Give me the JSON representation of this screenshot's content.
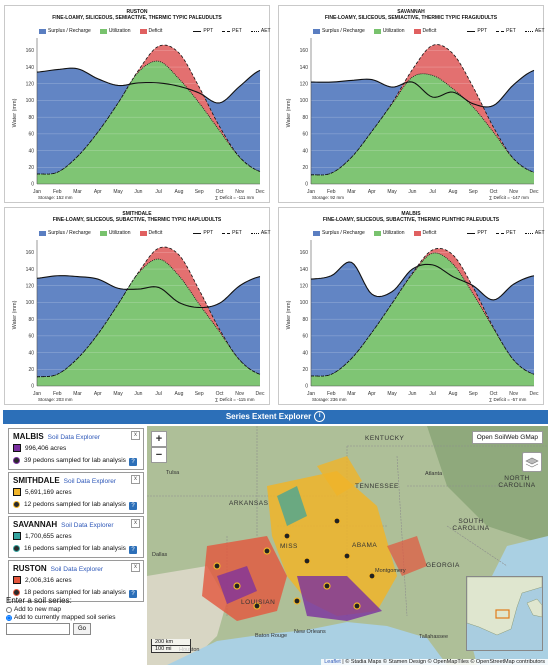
{
  "panels": [
    {
      "id": "ruston",
      "name": "RUSTON",
      "classification": "FINE-LOAMY, SILICEOUS, SEMIACTIVE, THERMIC TYPIC PALEUDULTS",
      "storage": "Storage: 152 mm",
      "deficit": "∑ Deficit = -111 mm",
      "chart_data": {
        "type": "area",
        "x": [
          "Jan",
          "Feb",
          "Mar",
          "Apr",
          "May",
          "Jun",
          "Jul",
          "Aug",
          "Sep",
          "Oct",
          "Nov",
          "Dec"
        ],
        "ylabel": "Water (mm)",
        "ylim": [
          0,
          170
        ],
        "yticks": [
          0,
          20,
          40,
          60,
          80,
          100,
          120,
          140,
          160
        ],
        "series": [
          {
            "name": "PPT",
            "values": [
              134,
              137,
              138,
              126,
              118,
              121,
              121,
              117,
              109,
              97,
              117,
              136
            ]
          },
          {
            "name": "PET",
            "values": [
              12,
              14,
              33,
              62,
              97,
              136,
              165,
              157,
              116,
              69,
              32,
              15
            ]
          },
          {
            "name": "AET",
            "values": [
              12,
              14,
              33,
              62,
              97,
              134,
              147,
              126,
              97,
              64,
              32,
              15
            ]
          }
        ],
        "legend": [
          "Surplus / Recharge",
          "Utilization",
          "Deficit",
          "PPT",
          "PET",
          "AET"
        ]
      }
    },
    {
      "id": "savannah",
      "name": "SAVANNAH",
      "classification": "FINE-LOAMY, SILICEOUS, SEMIACTIVE, THERMIC TYPIC FRAGIUDULTS",
      "storage": "Storage: 92 mm",
      "deficit": "∑ Deficit = -147 mm",
      "chart_data": {
        "type": "area",
        "x": [
          "Jan",
          "Feb",
          "Mar",
          "Apr",
          "May",
          "Jun",
          "Jul",
          "Aug",
          "Sep",
          "Oct",
          "Nov",
          "Dec"
        ],
        "ylabel": "Water (mm)",
        "ylim": [
          0,
          170
        ],
        "yticks": [
          0,
          20,
          40,
          60,
          80,
          100,
          120,
          140,
          160
        ],
        "series": [
          {
            "name": "PPT",
            "values": [
              122,
              122,
              124,
              125,
              116,
              122,
              104,
              110,
              96,
              94,
              119,
              136
            ]
          },
          {
            "name": "PET",
            "values": [
              11,
              13,
              32,
              63,
              97,
              137,
              166,
              156,
              116,
              68,
              30,
              14
            ]
          },
          {
            "name": "AET",
            "values": [
              11,
              13,
              32,
              63,
              96,
              128,
              130,
              114,
              92,
              62,
              30,
              14
            ]
          }
        ],
        "legend": [
          "Surplus / Recharge",
          "Utilization",
          "Deficit",
          "PPT",
          "PET",
          "AET"
        ]
      }
    },
    {
      "id": "smithdale",
      "name": "SMITHDALE",
      "classification": "FINE-LOAMY, SILICEOUS, SUBACTIVE, THERMIC TYPIC HAPLUDULTS",
      "storage": "Storage: 203 mm",
      "deficit": "∑ Deficit = -115 mm",
      "chart_data": {
        "type": "area",
        "x": [
          "Jan",
          "Feb",
          "Mar",
          "Apr",
          "May",
          "Jun",
          "Jul",
          "Aug",
          "Sep",
          "Oct",
          "Nov",
          "Dec"
        ],
        "ylabel": "Water (mm)",
        "ylim": [
          0,
          170
        ],
        "yticks": [
          0,
          20,
          40,
          60,
          80,
          100,
          120,
          140,
          160
        ],
        "series": [
          {
            "name": "PPT",
            "values": [
              129,
              132,
              131,
              128,
              117,
              116,
              118,
              100,
              94,
              99,
              120,
              131
            ]
          },
          {
            "name": "PET",
            "values": [
              11,
              14,
              33,
              62,
              98,
              136,
              165,
              157,
              115,
              68,
              31,
              14
            ]
          },
          {
            "name": "AET",
            "values": [
              11,
              14,
              33,
              62,
              98,
              135,
              152,
              132,
              98,
              65,
              31,
              14
            ]
          }
        ],
        "legend": [
          "Surplus / Recharge",
          "Utilization",
          "Deficit",
          "PPT",
          "PET",
          "AET"
        ]
      }
    },
    {
      "id": "malbis",
      "name": "MALBIS",
      "classification": "FINE-LOAMY, SILICEOUS, SUBACTIVE, THERMIC PLINTHIC PALEUDULTS",
      "storage": "Storage: 236 mm",
      "deficit": "∑ Deficit = -57 mm",
      "chart_data": {
        "type": "area",
        "x": [
          "Jan",
          "Feb",
          "Mar",
          "Apr",
          "May",
          "Jun",
          "Jul",
          "Aug",
          "Sep",
          "Oct",
          "Nov",
          "Dec"
        ],
        "ylabel": "Water (mm)",
        "ylim": [
          0,
          170
        ],
        "yticks": [
          0,
          20,
          40,
          60,
          80,
          100,
          120,
          140,
          160
        ],
        "series": [
          {
            "name": "PPT",
            "values": [
              128,
              132,
              148,
              110,
              113,
              140,
              145,
              131,
              120,
              103,
              122,
              132
            ]
          },
          {
            "name": "PET",
            "values": [
              12,
              14,
              33,
              64,
              99,
              135,
              163,
              157,
              118,
              70,
              31,
              14
            ]
          },
          {
            "name": "AET",
            "values": [
              12,
              14,
              33,
              64,
              99,
              134,
              159,
              146,
              110,
              69,
              31,
              14
            ]
          }
        ],
        "legend": [
          "Surplus / Recharge",
          "Utilization",
          "Deficit",
          "PPT",
          "PET",
          "AET"
        ]
      }
    }
  ],
  "colors": {
    "surplus": "#5a7ec1",
    "utilization": "#78c26d",
    "deficit": "#e06060",
    "header_blue": "#2c6fb8",
    "link": "#2d57b8"
  },
  "explorer": {
    "title": "Series Extent Explorer",
    "info_icon": "i",
    "series": [
      {
        "name": "MALBIS",
        "link": "Soil Data Explorer",
        "acres": "996,406 acres",
        "pedons": "39 pedons sampled for lab analysis",
        "color": "#7a2fa0",
        "close": "x",
        "help": "?"
      },
      {
        "name": "SMITHDALE",
        "link": "Soil Data Explorer",
        "acres": "5,691,169 acres",
        "pedons": "12 pedons sampled for lab analysis",
        "color": "#f0b429",
        "close": "x",
        "help": "?"
      },
      {
        "name": "SAVANNAH",
        "link": "Soil Data Explorer",
        "acres": "1,700,655 acres",
        "pedons": "16 pedons sampled for lab analysis",
        "color": "#35a4a0",
        "close": "x",
        "help": "?"
      },
      {
        "name": "RUSTON",
        "link": "Soil Data Explorer",
        "acres": "2,006,316 acres",
        "pedons": "18 pedons sampled for lab analysis",
        "color": "#e3563d",
        "close": "x",
        "help": "?"
      }
    ],
    "add": {
      "title": "Enter a soil series:",
      "opt_new": "Add to new map",
      "opt_current": "Add to currently mapped soil series",
      "go": "Go",
      "input_value": ""
    },
    "map": {
      "zoom_in": "+",
      "zoom_out": "−",
      "open_button": "Open SoilWeb GMap",
      "states": [
        "KENTUCKY",
        "TENNESSEE",
        "ARKANSAS",
        "NORTH CAROLINA",
        "SOUTH CAROLINA",
        "GEORGIA",
        "MISS",
        "ABAMA",
        "LOUISIAN"
      ],
      "cities": [
        "Tulsa",
        "Dallas",
        "Houston",
        "Baton Rouge",
        "New Orleans",
        "Montgomery",
        "Tallahassee",
        "Atlanta"
      ],
      "scale_km": "200 km",
      "scale_mi": "100 mi",
      "scale_extra": "port",
      "attribution_leaflet": "Leaflet",
      "attribution_rest": "| © Stadia Maps © Stamen Design © OpenMapTiles © OpenStreetMap contributors"
    }
  }
}
